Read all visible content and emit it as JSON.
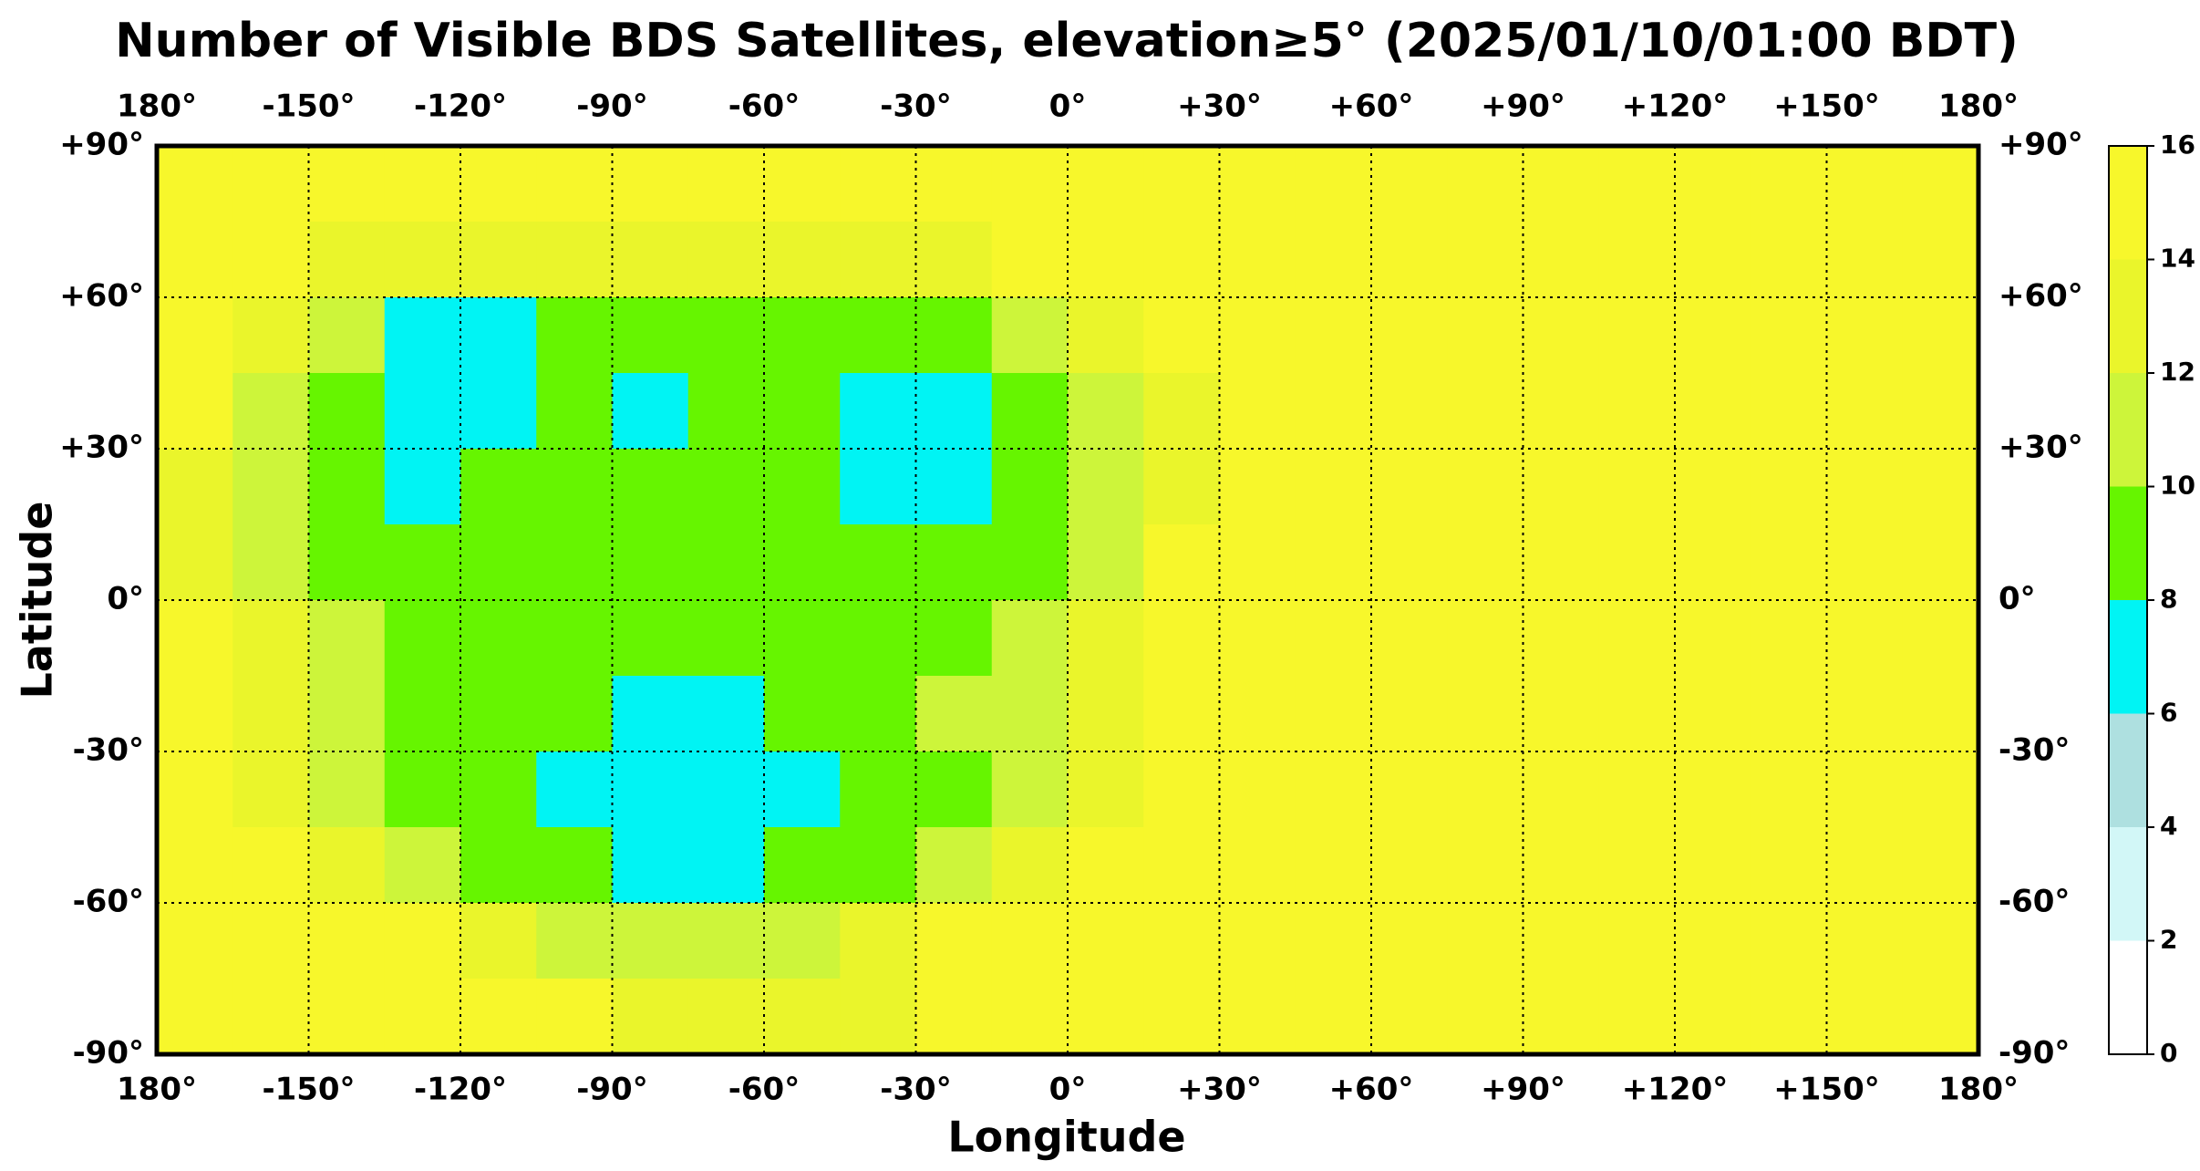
{
  "chart_data": {
    "type": "heatmap",
    "title": "Number of Visible BDS Satellites, elevation≥5° (2025/01/10/01:00 BDT)",
    "x_label": "Longitude",
    "y_label": "Latitude",
    "xlim": [
      -180,
      180
    ],
    "ylim": [
      -90,
      90
    ],
    "xticks": [
      {
        "value": -180,
        "label": "180°"
      },
      {
        "value": -150,
        "label": "-150°"
      },
      {
        "value": -120,
        "label": "-120°"
      },
      {
        "value": -90,
        "label": "-90°"
      },
      {
        "value": -60,
        "label": "-60°"
      },
      {
        "value": -30,
        "label": "-30°"
      },
      {
        "value": 0,
        "label": "0°"
      },
      {
        "value": 30,
        "label": "+30°"
      },
      {
        "value": 60,
        "label": "+60°"
      },
      {
        "value": 90,
        "label": "+90°"
      },
      {
        "value": 120,
        "label": "+120°"
      },
      {
        "value": 150,
        "label": "+150°"
      },
      {
        "value": 180,
        "label": "180°"
      }
    ],
    "yticks": [
      {
        "value": -90,
        "label": "-90°"
      },
      {
        "value": -60,
        "label": "-60°"
      },
      {
        "value": -30,
        "label": "-30°"
      },
      {
        "value": 0,
        "label": "0°"
      },
      {
        "value": 30,
        "label": "+30°"
      },
      {
        "value": 60,
        "label": "+60°"
      },
      {
        "value": 90,
        "label": "+90°"
      }
    ],
    "grid": true,
    "colorbar": {
      "ticks": [
        0,
        2,
        4,
        6,
        8,
        10,
        12,
        14,
        16
      ],
      "colors": [
        "#ffffff",
        "#d2f7f7",
        "#aee0e0",
        "#00f4f4",
        "#66f500",
        "#cdf53a",
        "#eaf52b",
        "#f7f72b"
      ]
    },
    "values": [
      [
        15,
        15,
        15,
        15,
        15,
        15,
        15,
        15,
        15,
        15,
        15,
        15,
        15,
        15,
        15,
        15,
        15,
        15,
        15,
        15,
        15,
        15,
        15,
        15
      ],
      [
        15,
        15,
        13,
        13,
        13,
        13,
        13,
        13,
        13,
        13,
        13,
        15,
        15,
        15,
        15,
        15,
        15,
        15,
        15,
        15,
        15,
        15,
        15,
        15
      ],
      [
        15,
        13,
        11,
        7,
        7,
        9,
        9,
        9,
        9,
        9,
        9,
        11,
        13,
        15,
        15,
        15,
        15,
        15,
        15,
        15,
        15,
        15,
        15,
        15
      ],
      [
        15,
        11,
        9,
        7,
        7,
        9,
        7,
        9,
        9,
        7,
        7,
        9,
        11,
        13,
        15,
        15,
        15,
        15,
        15,
        15,
        15,
        15,
        15,
        15
      ],
      [
        13,
        11,
        9,
        7,
        9,
        9,
        9,
        9,
        9,
        7,
        7,
        9,
        11,
        13,
        15,
        15,
        15,
        15,
        15,
        15,
        15,
        15,
        15,
        15
      ],
      [
        13,
        11,
        9,
        9,
        9,
        9,
        9,
        9,
        9,
        9,
        9,
        9,
        11,
        15,
        15,
        15,
        15,
        15,
        15,
        15,
        15,
        15,
        15,
        15
      ],
      [
        15,
        13,
        11,
        9,
        9,
        9,
        9,
        9,
        9,
        9,
        9,
        11,
        13,
        15,
        15,
        15,
        15,
        15,
        15,
        15,
        15,
        15,
        15,
        15
      ],
      [
        15,
        13,
        11,
        9,
        9,
        9,
        7,
        7,
        9,
        9,
        11,
        11,
        13,
        15,
        15,
        15,
        15,
        15,
        15,
        15,
        15,
        15,
        15,
        15
      ],
      [
        15,
        13,
        11,
        9,
        9,
        7,
        7,
        7,
        7,
        9,
        9,
        11,
        13,
        15,
        15,
        15,
        15,
        15,
        15,
        15,
        15,
        15,
        15,
        15
      ],
      [
        15,
        15,
        13,
        11,
        9,
        9,
        7,
        7,
        9,
        9,
        11,
        13,
        15,
        15,
        15,
        15,
        15,
        15,
        15,
        15,
        15,
        15,
        15,
        15
      ],
      [
        15,
        15,
        15,
        15,
        13,
        11,
        11,
        11,
        11,
        13,
        15,
        15,
        15,
        15,
        15,
        15,
        15,
        15,
        15,
        15,
        15,
        15,
        15,
        15
      ],
      [
        15,
        15,
        15,
        15,
        15,
        15,
        13,
        13,
        13,
        13,
        15,
        15,
        15,
        15,
        15,
        15,
        15,
        15,
        15,
        15,
        15,
        15,
        15,
        15
      ]
    ]
  }
}
